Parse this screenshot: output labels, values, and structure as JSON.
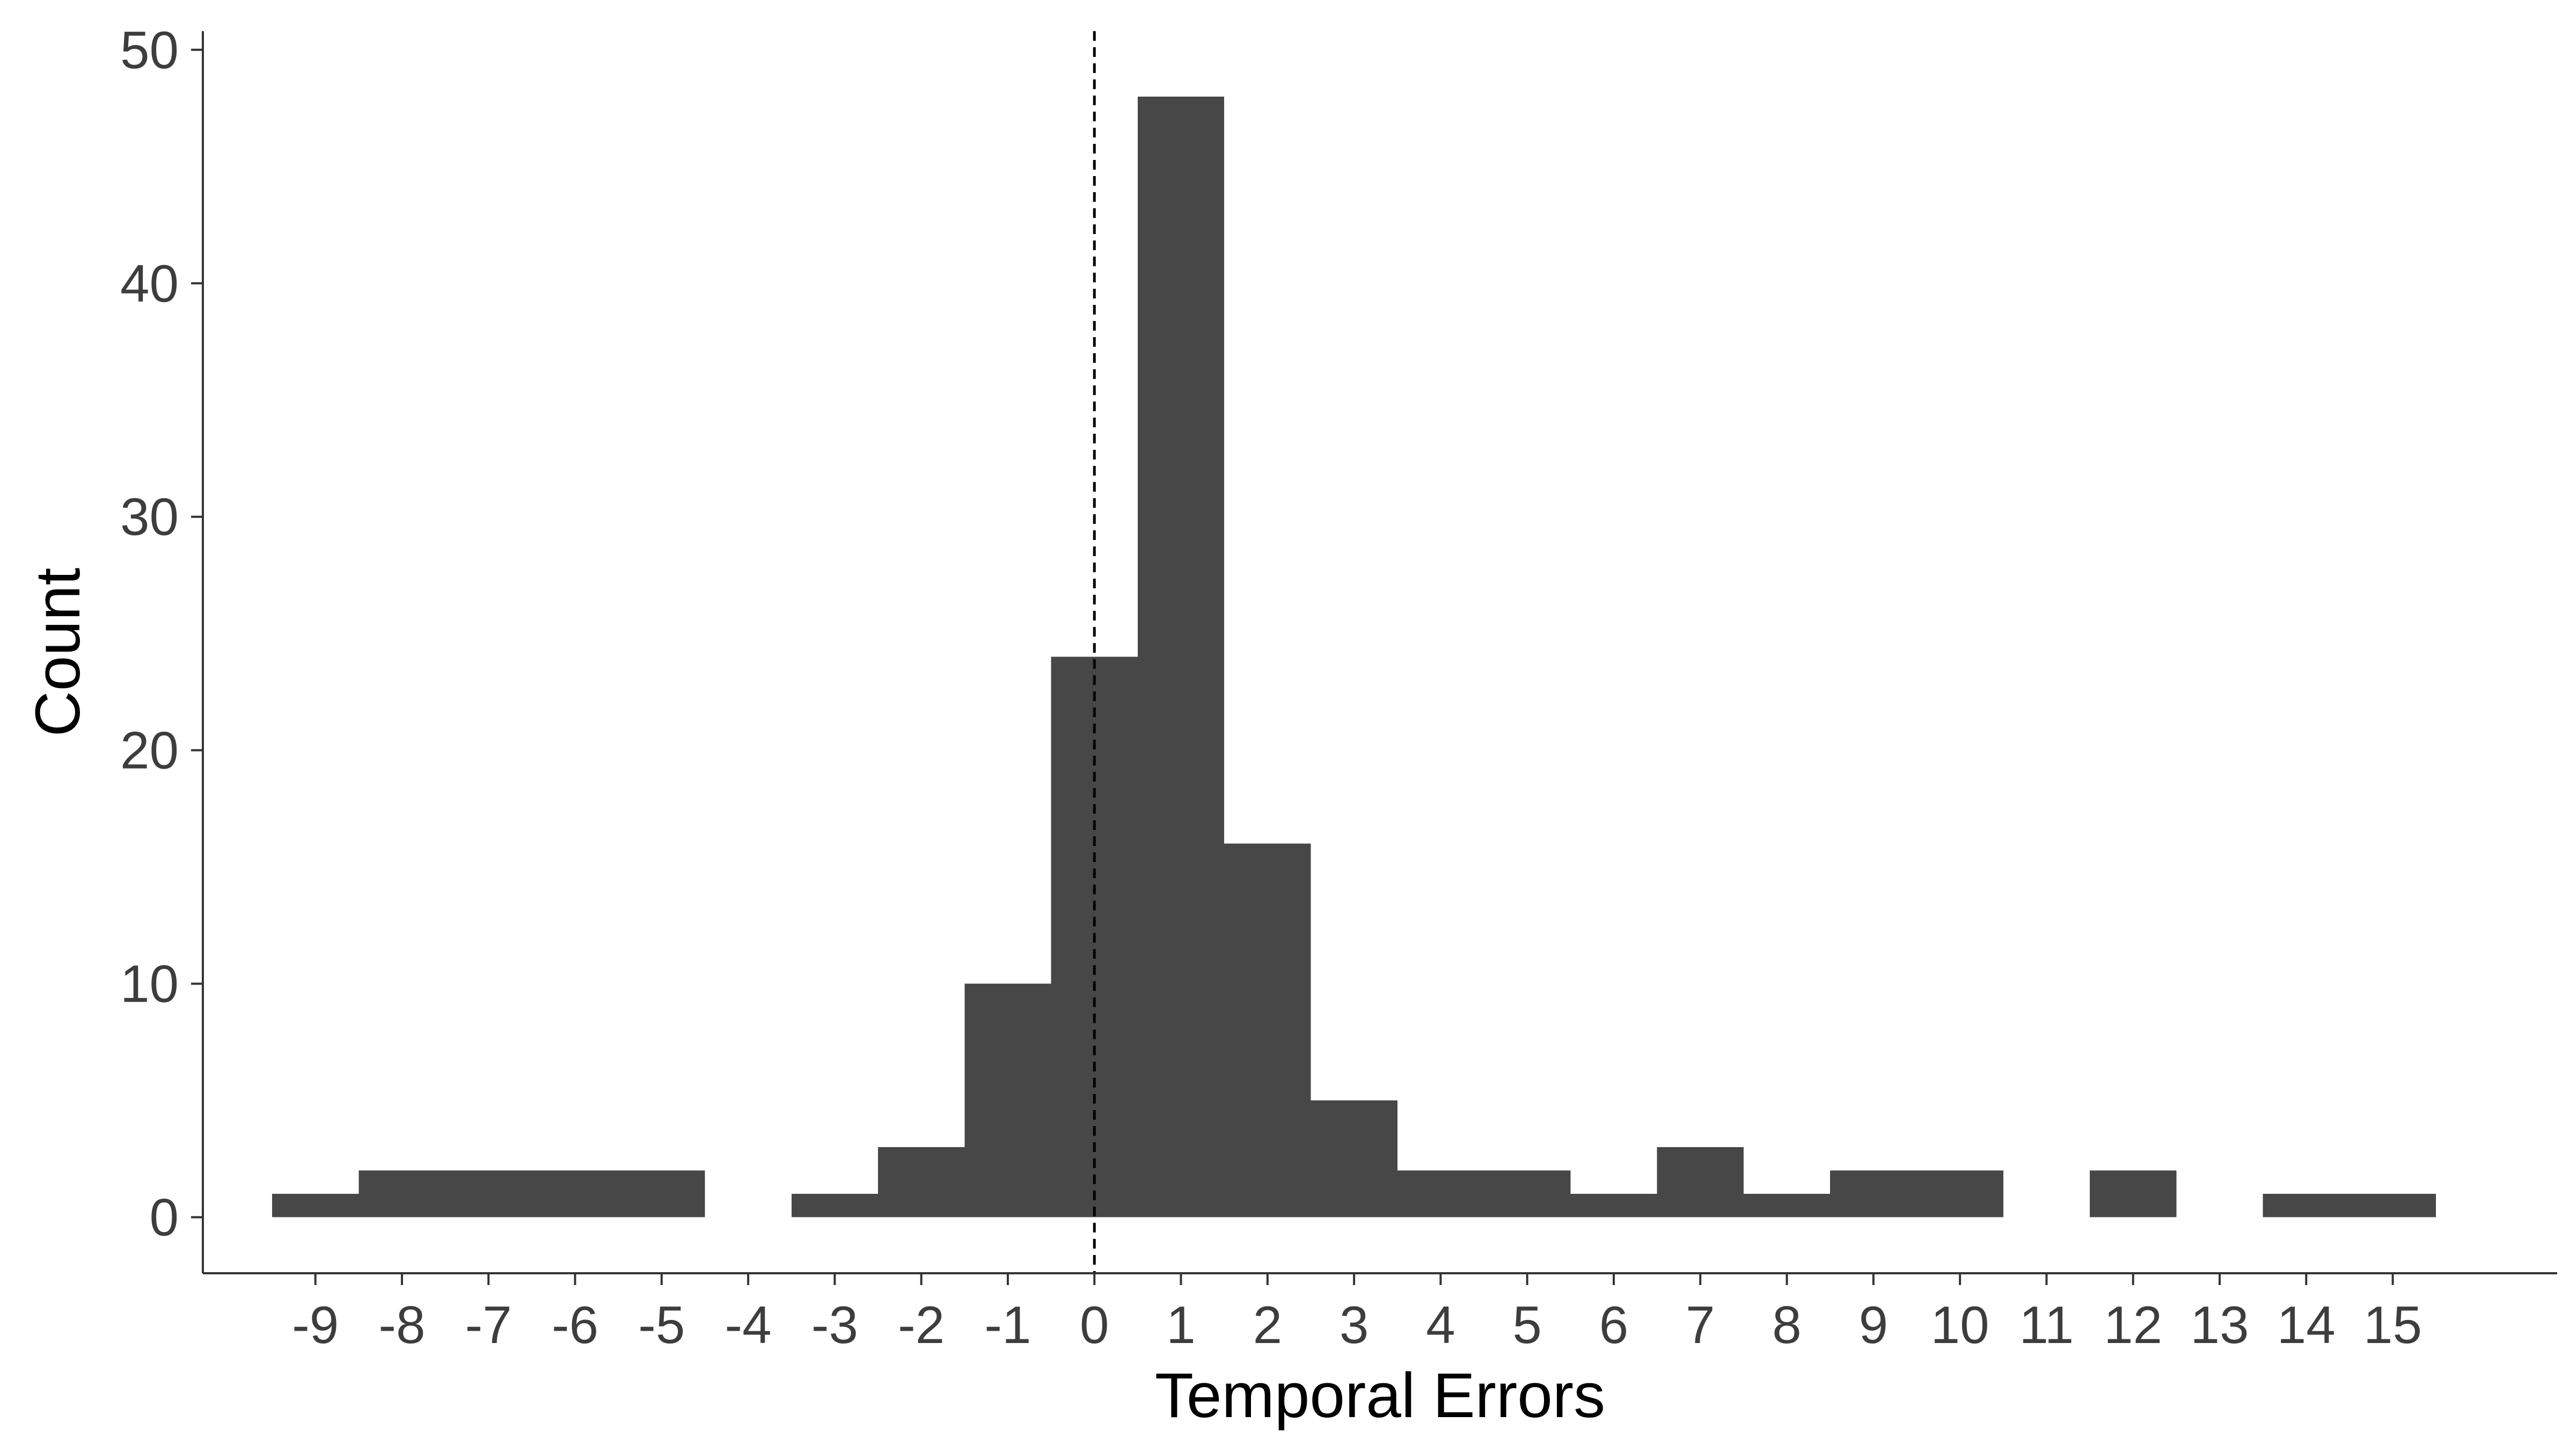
{
  "chart_data": {
    "type": "bar",
    "title": "",
    "xlabel": "Temporal Errors",
    "ylabel": "Count",
    "bin_width": 1,
    "x_ticks": [
      -9,
      -8,
      -7,
      -6,
      -5,
      -4,
      -3,
      -2,
      -1,
      0,
      1,
      2,
      3,
      4,
      5,
      6,
      7,
      8,
      9,
      10,
      11,
      12,
      13,
      14,
      15
    ],
    "x_tick_labels": [
      "-9",
      "-8",
      "-7",
      "-6",
      "-5",
      "-4",
      "-3",
      "-2",
      "-1",
      "0",
      "1",
      "2",
      "3",
      "4",
      "5",
      "6",
      "7",
      "8",
      "9",
      "10",
      "11",
      "12",
      "13",
      "14",
      "15"
    ],
    "y_ticks": [
      0,
      10,
      20,
      30,
      40,
      50
    ],
    "y_tick_labels": [
      "0",
      "10",
      "20",
      "30",
      "40",
      "50"
    ],
    "xlim": [
      -10.3,
      16.9
    ],
    "ylim": [
      -2.4,
      50.8
    ],
    "x": [
      -9,
      -8,
      -7,
      -6,
      -5,
      -4,
      -3,
      -2,
      -1,
      0,
      1,
      2,
      3,
      4,
      5,
      6,
      7,
      8,
      9,
      10,
      11,
      12,
      13,
      14,
      15
    ],
    "values": [
      1,
      2,
      2,
      2,
      2,
      0,
      1,
      3,
      10,
      24,
      48,
      16,
      5,
      2,
      2,
      1,
      3,
      1,
      2,
      2,
      0,
      2,
      0,
      1,
      1
    ],
    "reference_line": {
      "x": 0,
      "style": "dashed"
    },
    "bar_color": "#474747",
    "axis_color": "#333333",
    "grid": false,
    "legend": "none"
  }
}
